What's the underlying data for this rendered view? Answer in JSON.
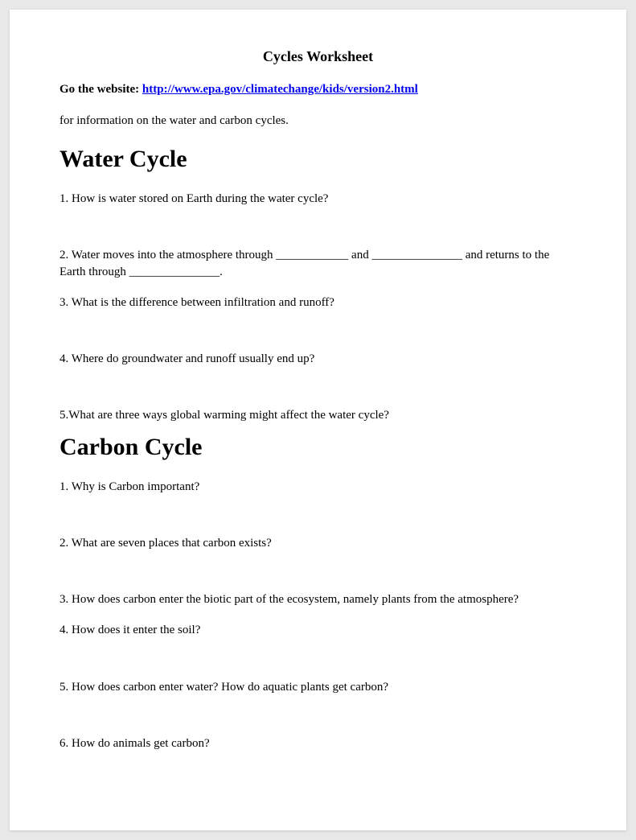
{
  "title": "Cycles Worksheet",
  "intro": {
    "lead": "Go the website: ",
    "url": "http://www.epa.gov/climatechange/kids/version2.html",
    "subtext": "for information on the water and carbon cycles."
  },
  "sections": [
    {
      "heading": "Water Cycle",
      "questions": [
        "1. How is water stored on Earth during the water cycle?",
        "2. Water moves into the atmosphere through ____________ and _______________ and returns to the Earth through _______________.",
        "3. What is the difference between infiltration and runoff?",
        "4. Where do groundwater and runoff usually end up?",
        "5.What are three ways global warming might affect the water cycle?"
      ]
    },
    {
      "heading": "Carbon Cycle",
      "questions": [
        "1. Why is Carbon important?",
        "2. What are seven places that carbon exists?",
        "3. How does carbon enter the biotic part of the ecosystem, namely plants from the atmosphere?",
        "4.  How does it enter the soil?",
        "5. How does carbon enter water?  How do aquatic plants get carbon?",
        "6. How do animals get carbon?"
      ]
    }
  ],
  "colors": {
    "page_bg": "#ffffff",
    "body_bg": "#e8e8e8",
    "text": "#000000",
    "link": "#0000ee"
  }
}
